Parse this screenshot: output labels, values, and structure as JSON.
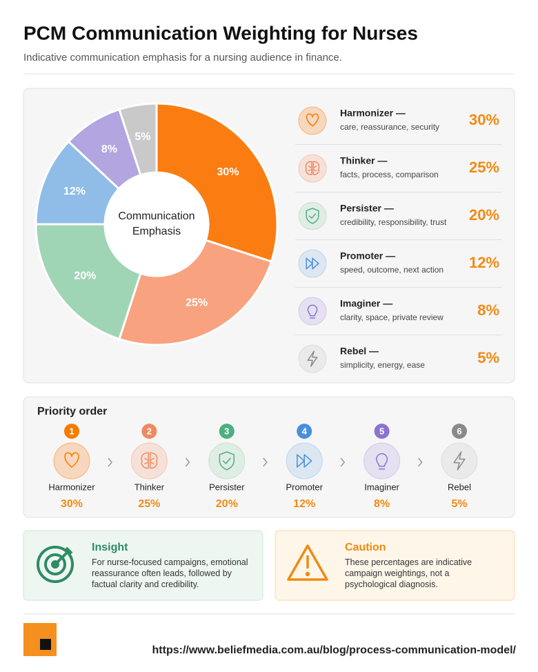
{
  "header": {
    "title": "PCM Communication Weighting for Nurses",
    "subtitle": "Indicative communication emphasis for a nursing audience in finance."
  },
  "chart_data": {
    "type": "pie",
    "center_label": "Communication Emphasis",
    "categories": [
      "Harmonizer",
      "Thinker",
      "Persister",
      "Promoter",
      "Imaginer",
      "Rebel"
    ],
    "values": [
      30,
      25,
      20,
      12,
      8,
      5
    ],
    "value_labels": [
      "30%",
      "25%",
      "20%",
      "12%",
      "8%",
      "5%"
    ],
    "colors": [
      "#fb7d12",
      "#f9a27f",
      "#9fd5b5",
      "#8fbde8",
      "#b3a5e0",
      "#c9c9c9"
    ],
    "accent_colors": [
      "#f57c00",
      "#ee8a62",
      "#4caf82",
      "#4a8fdb",
      "#8a74d0",
      "#8a8a8a"
    ],
    "legend": [
      {
        "label": "Harmonizer —",
        "description": "care, reassurance, security"
      },
      {
        "label": "Thinker —",
        "description": "facts, process, comparison"
      },
      {
        "label": "Persister —",
        "description": "credibility, responsibility, trust"
      },
      {
        "label": "Promoter —",
        "description": "speed, outcome, next action"
      },
      {
        "label": "Imaginer —",
        "description": "clarity, space, private review"
      },
      {
        "label": "Rebel —",
        "description": "simplicity, energy, ease"
      }
    ]
  },
  "priority_order": {
    "title": "Priority order",
    "ranks": [
      1,
      2,
      3,
      4,
      5,
      6
    ]
  },
  "insight": {
    "title": "Insight",
    "text": "For nurse-focused campaigns, emotional reassurance often leads, followed by factual clarity and credibility."
  },
  "caution": {
    "title": "Caution",
    "text": "These percentages are indicative campaign weightings, not a psychological diagnosis."
  },
  "footer": {
    "url": "https://www.beliefmedia.com.au/blog/process-communication-model/"
  }
}
